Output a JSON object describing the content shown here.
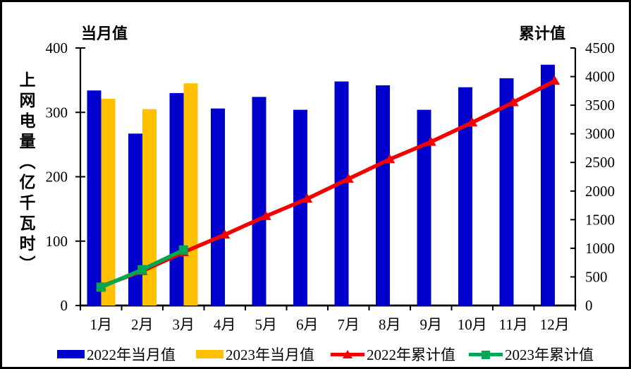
{
  "chart_data": {
    "type": "combo",
    "categories": [
      "1月",
      "2月",
      "3月",
      "4月",
      "5月",
      "6月",
      "7月",
      "8月",
      "9月",
      "10月",
      "11月",
      "12月"
    ],
    "series": [
      {
        "id": "2022-monthly",
        "name": "2022年当月值",
        "type": "bar",
        "axis": "left",
        "color": "#0000CD",
        "values": [
          334,
          267,
          330,
          306,
          324,
          304,
          348,
          342,
          304,
          339,
          353,
          374
        ]
      },
      {
        "id": "2023-monthly",
        "name": "2023年当月值",
        "type": "bar",
        "axis": "left",
        "color": "#FFC000",
        "values": [
          321,
          305,
          345
        ]
      },
      {
        "id": "2022-cumulative",
        "name": "2022年累计值",
        "type": "line",
        "marker": "triangle",
        "axis": "right",
        "color": "#F40000",
        "values": [
          334,
          601,
          931,
          1237,
          1561,
          1865,
          2213,
          2555,
          2859,
          3198,
          3551,
          3925
        ]
      },
      {
        "id": "2023-cumulative",
        "name": "2023年累计值",
        "type": "line",
        "marker": "square",
        "axis": "right",
        "color": "#00A651",
        "values": [
          321,
          626,
          971
        ]
      }
    ],
    "left_axis": {
      "title": "当月值",
      "axis_label": "上网电量（亿千瓦时）",
      "min": 0,
      "max": 400,
      "ticks": [
        0,
        100,
        200,
        300,
        400
      ]
    },
    "right_axis": {
      "title": "累计值",
      "min": 0,
      "max": 4500,
      "ticks": [
        0,
        500,
        1000,
        1500,
        2000,
        2500,
        3000,
        3500,
        4000,
        4500
      ]
    },
    "grid": false,
    "legend_position": "bottom",
    "frame_color": "#000000",
    "background": "#FFFFFF"
  }
}
